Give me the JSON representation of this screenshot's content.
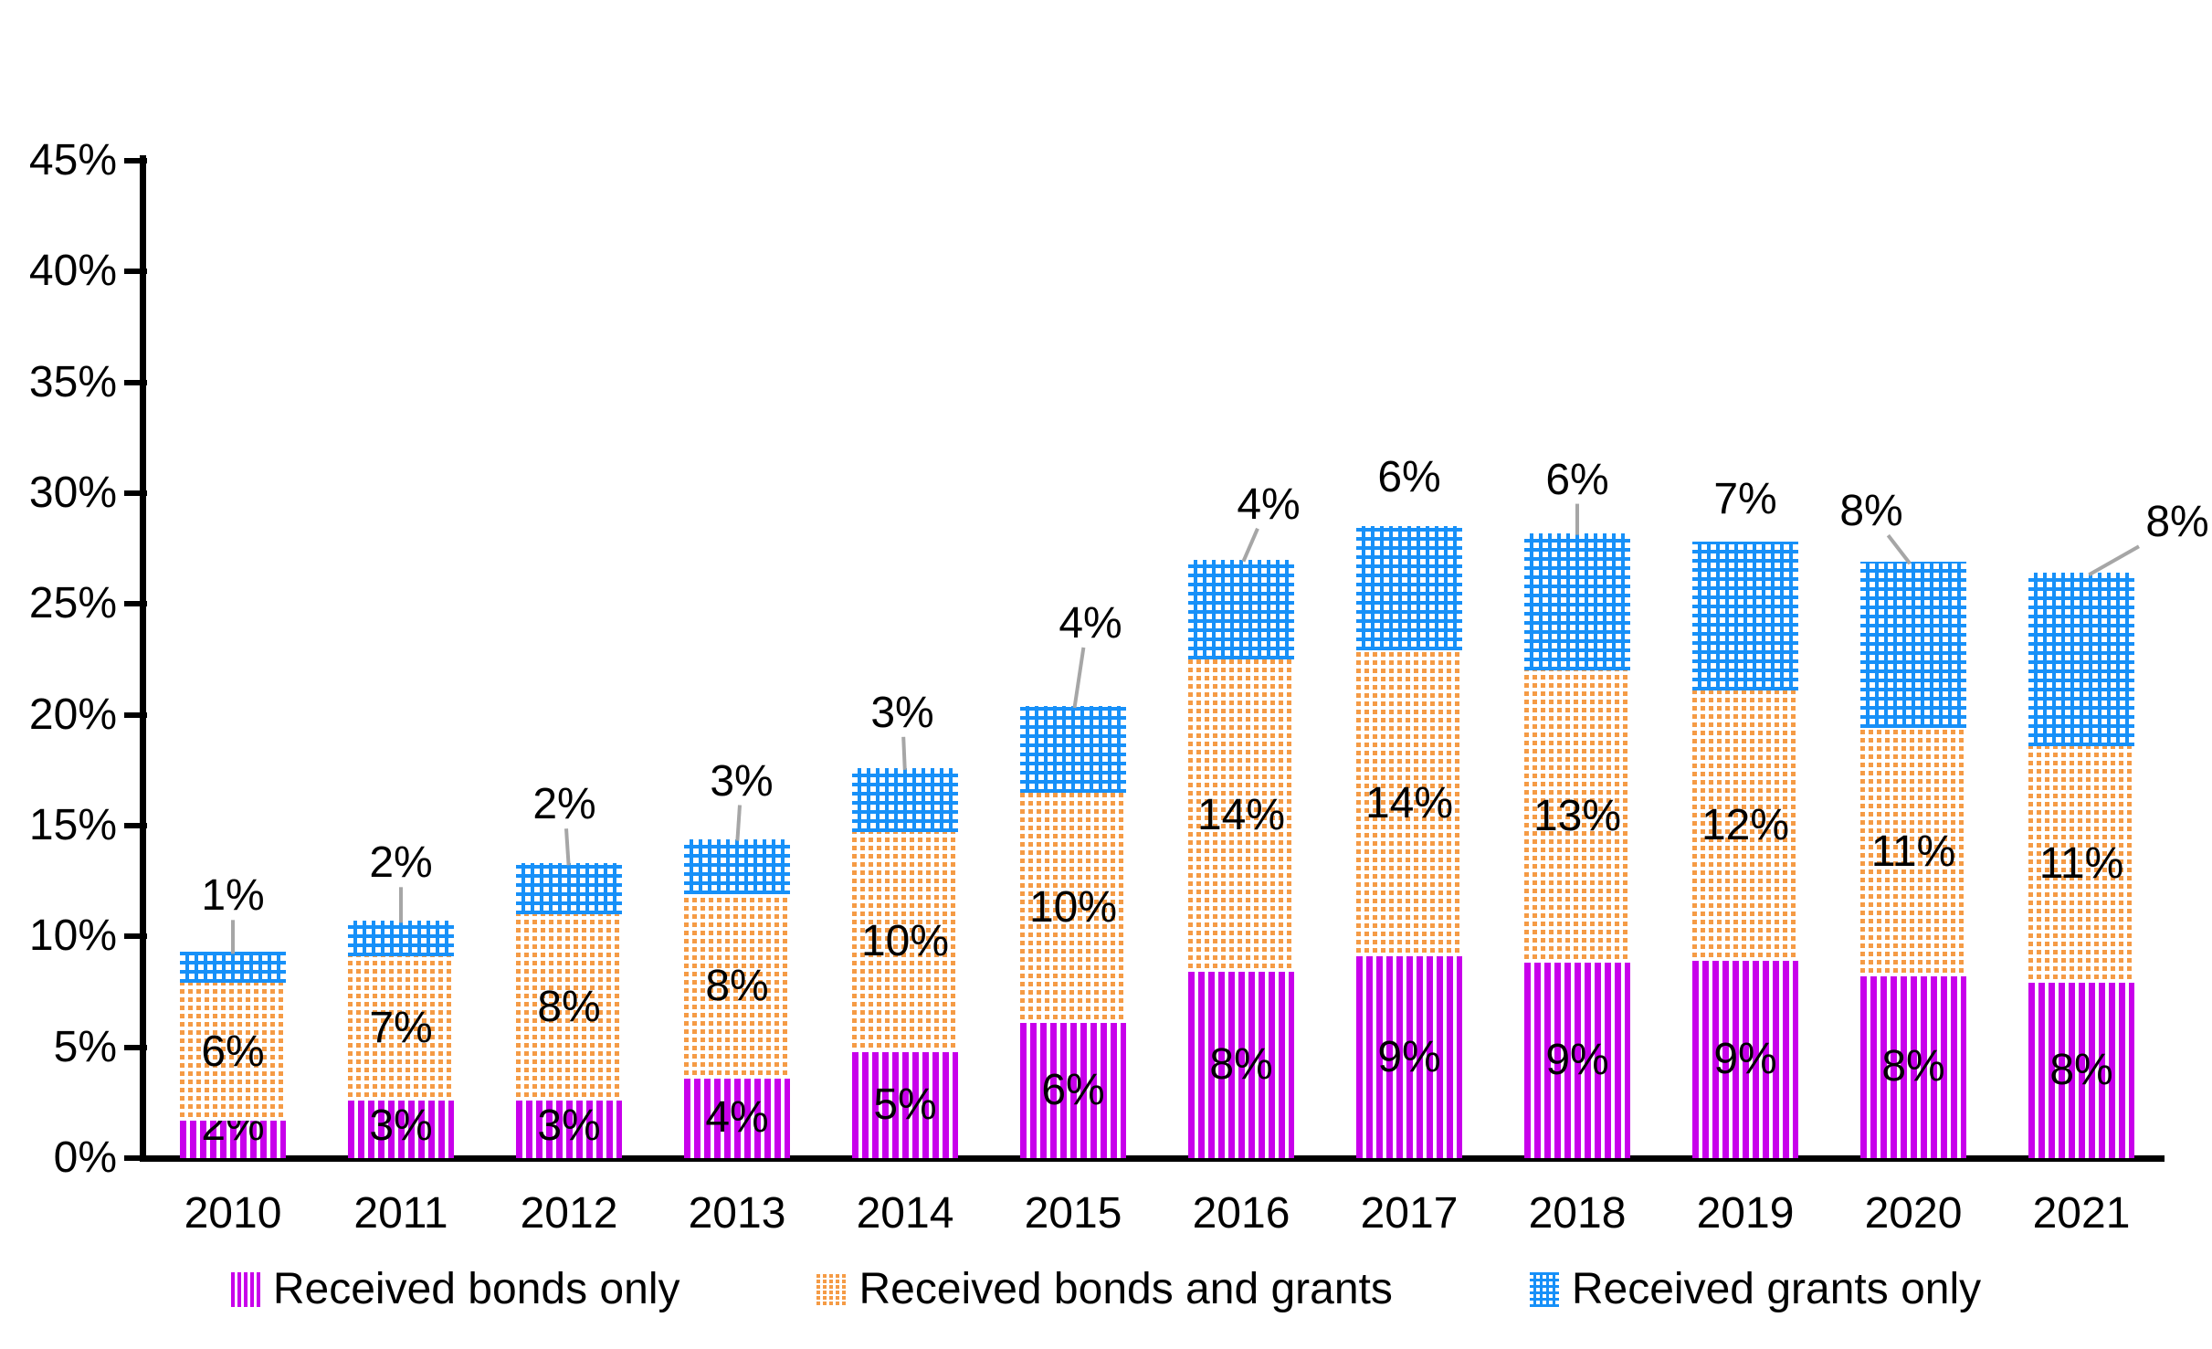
{
  "chart_data": {
    "type": "bar",
    "stacked": true,
    "title": "",
    "xlabel": "",
    "ylabel": "",
    "ylim": [
      0,
      45
    ],
    "ytick_step": 5,
    "ytick_suffix": "%",
    "yticks": [
      "0%",
      "5%",
      "10%",
      "15%",
      "20%",
      "25%",
      "30%",
      "35%",
      "40%",
      "45%"
    ],
    "grid": false,
    "legend_position": "bottom",
    "axis_color": "#000000",
    "leader_line_color": "#A6A6A6",
    "categories": [
      "2010",
      "2011",
      "2012",
      "2013",
      "2014",
      "2015",
      "2016",
      "2017",
      "2018",
      "2019",
      "2020",
      "2021"
    ],
    "series": [
      {
        "name": "Received bonds only",
        "pattern": "vertical-stripes",
        "color": "#C800EB",
        "label_placement": "inside-base",
        "values": [
          1.7,
          2.6,
          2.6,
          3.6,
          4.8,
          6.1,
          8.4,
          9.1,
          8.8,
          8.9,
          8.2,
          7.9
        ],
        "labels": [
          "2%",
          "3%",
          "3%",
          "4%",
          "5%",
          "6%",
          "8%",
          "9%",
          "9%",
          "9%",
          "8%",
          "8%"
        ]
      },
      {
        "name": "Received bonds and grants",
        "pattern": "dot-grid",
        "color": "#F59B45",
        "label_placement": "inside-center",
        "values": [
          6.2,
          6.5,
          8.4,
          8.3,
          9.9,
          10.4,
          14.1,
          13.8,
          13.2,
          12.2,
          11.2,
          10.7
        ],
        "labels": [
          "6%",
          "7%",
          "8%",
          "8%",
          "10%",
          "10%",
          "14%",
          "14%",
          "13%",
          "12%",
          "11%",
          "11%"
        ]
      },
      {
        "name": "Received grants only",
        "pattern": "checker",
        "color": "#1790F8",
        "label_placement": "outside-end",
        "values": [
          1.4,
          1.6,
          2.3,
          2.5,
          2.9,
          3.9,
          4.5,
          5.6,
          6.2,
          6.7,
          7.5,
          7.8
        ],
        "labels": [
          "1%",
          "2%",
          "2%",
          "3%",
          "3%",
          "4%",
          "4%",
          "6%",
          "6%",
          "7%",
          "8%",
          "8%"
        ],
        "outside_label_offsets": [
          [
            0,
            -61
          ],
          [
            0,
            -63
          ],
          [
            -5,
            -64
          ],
          [
            5,
            -63
          ],
          [
            -3,
            -60
          ],
          [
            19,
            -90
          ],
          [
            30,
            -60
          ],
          [
            0,
            -53
          ],
          [
            0,
            -58
          ],
          [
            0,
            -46
          ],
          [
            -46,
            -55
          ],
          [
            105,
            -55
          ]
        ],
        "outside_label_leaders": [
          true,
          true,
          true,
          true,
          true,
          true,
          true,
          false,
          true,
          false,
          true,
          true
        ]
      }
    ]
  }
}
